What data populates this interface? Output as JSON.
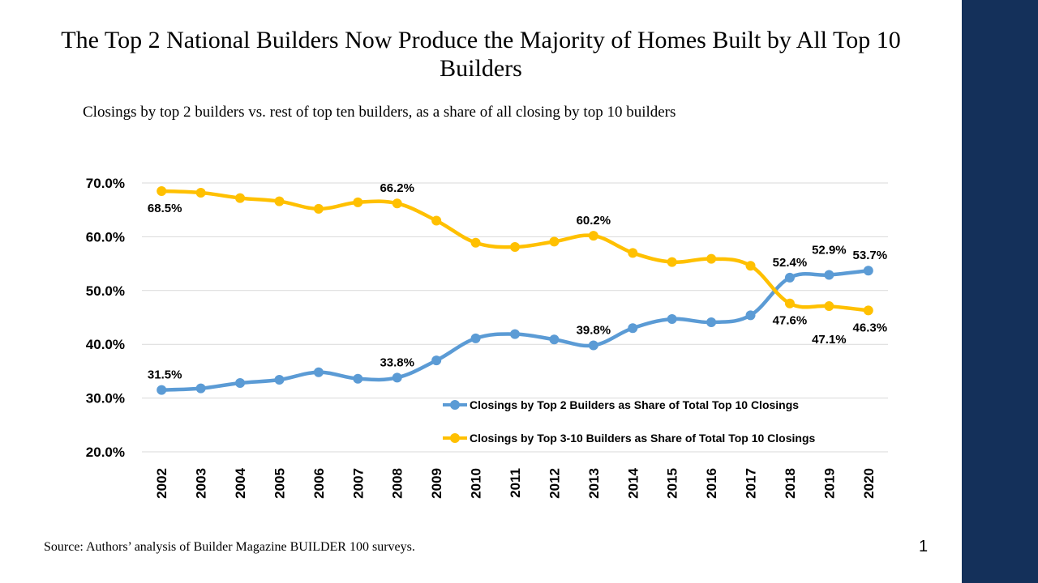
{
  "title": "The Top 2 National Builders Now Produce the Majority of Homes Built by All Top 10 Builders",
  "subtitle": "Closings by top 2 builders vs. rest of top ten builders, as a share of all closing by top 10 builders",
  "source": "Source: Authors’ analysis of Builder Magazine BUILDER 100 surveys.",
  "page_number": "1",
  "colors": {
    "top2": "#5b9bd5",
    "rest": "#ffc000",
    "sidebar": "#14305a",
    "grid": "#d9d9d9"
  },
  "chart_data": {
    "type": "line",
    "categories": [
      "2002",
      "2003",
      "2004",
      "2005",
      "2006",
      "2007",
      "2008",
      "2009",
      "2010",
      "2011",
      "2012",
      "2013",
      "2014",
      "2015",
      "2016",
      "2017",
      "2018",
      "2019",
      "2020"
    ],
    "ylim": [
      20,
      70
    ],
    "yticks": [
      20,
      30,
      40,
      50,
      60,
      70
    ],
    "ytick_labels": [
      "20.0%",
      "30.0%",
      "40.0%",
      "50.0%",
      "60.0%",
      "70.0%"
    ],
    "legend_position": "bottom-right",
    "series": [
      {
        "name": "Closings by Top 2 Builders as Share of Total Top 10 Closings",
        "key": "top2",
        "values": [
          31.5,
          31.8,
          32.8,
          33.4,
          34.8,
          33.6,
          33.8,
          37.0,
          41.1,
          41.9,
          40.9,
          39.8,
          43.0,
          44.7,
          44.1,
          45.4,
          52.4,
          52.9,
          53.7
        ],
        "labels": [
          {
            "index": 0,
            "text": "31.5%",
            "pos": "above"
          },
          {
            "index": 6,
            "text": "33.8%",
            "pos": "above"
          },
          {
            "index": 11,
            "text": "39.8%",
            "pos": "above"
          },
          {
            "index": 16,
            "text": "52.4%",
            "pos": "above"
          },
          {
            "index": 17,
            "text": "52.9%",
            "pos": "above-high"
          },
          {
            "index": 18,
            "text": "53.7%",
            "pos": "above"
          }
        ]
      },
      {
        "name": "Closings by Top 3-10 Builders as Share of Total Top 10 Closings",
        "key": "rest",
        "values": [
          68.5,
          68.2,
          67.2,
          66.6,
          65.2,
          66.4,
          66.2,
          63.0,
          58.9,
          58.1,
          59.1,
          60.2,
          57.0,
          55.3,
          55.9,
          54.6,
          47.6,
          47.1,
          46.3
        ],
        "labels": [
          {
            "index": 0,
            "text": "68.5%",
            "pos": "below"
          },
          {
            "index": 6,
            "text": "66.2%",
            "pos": "above"
          },
          {
            "index": 11,
            "text": "60.2%",
            "pos": "above"
          },
          {
            "index": 16,
            "text": "47.6%",
            "pos": "below"
          },
          {
            "index": 17,
            "text": "47.1%",
            "pos": "below-low"
          },
          {
            "index": 18,
            "text": "46.3%",
            "pos": "below"
          }
        ]
      }
    ]
  }
}
